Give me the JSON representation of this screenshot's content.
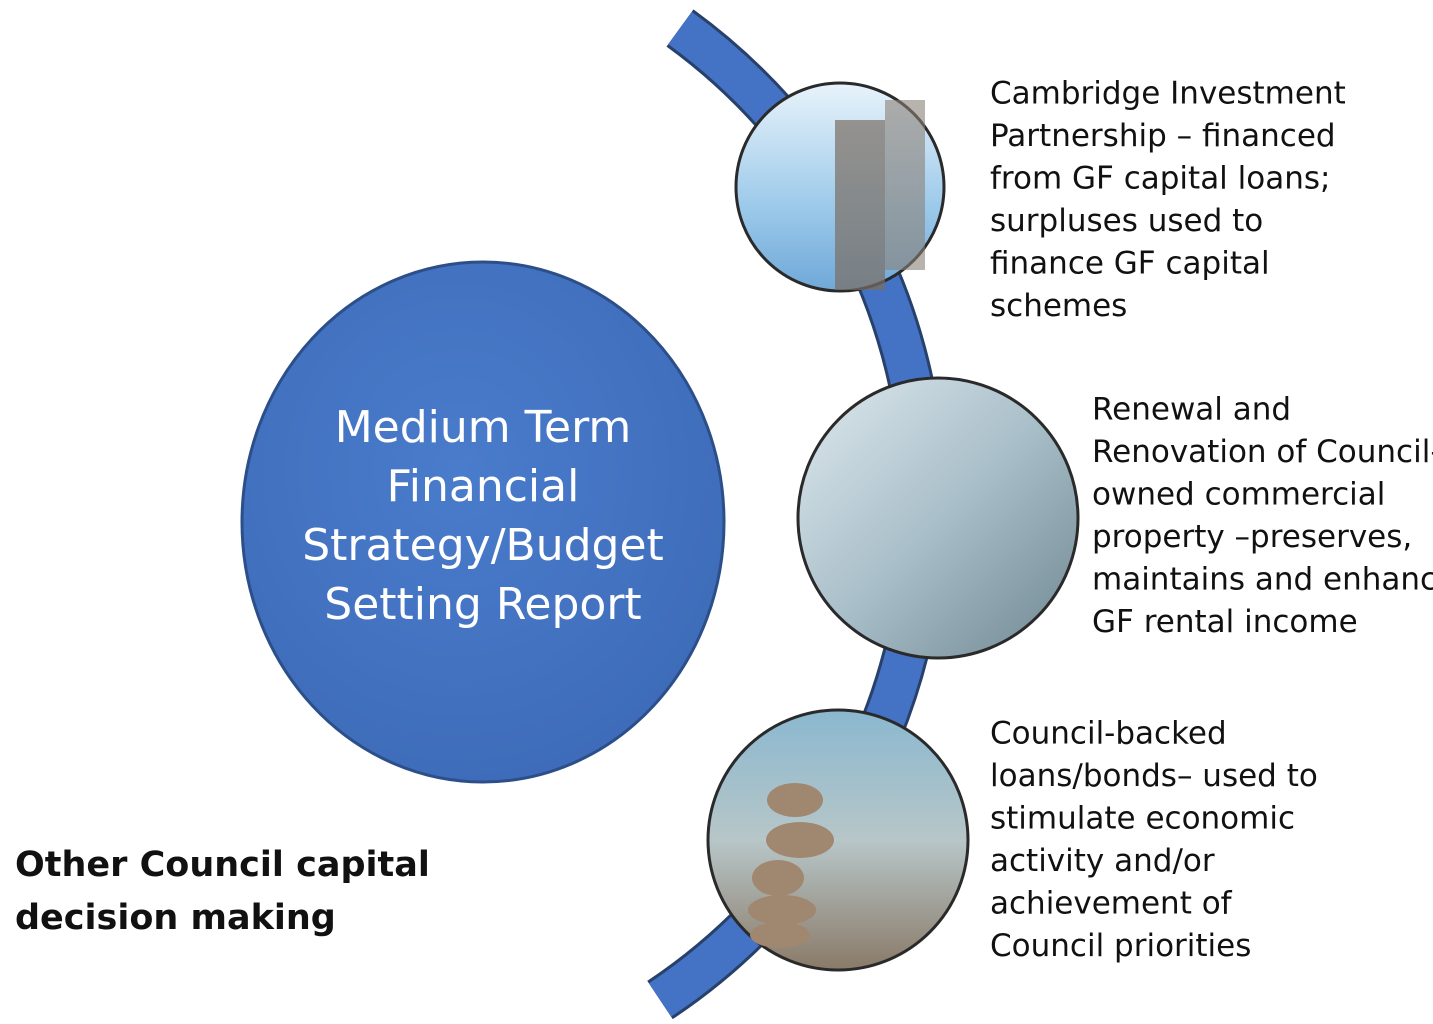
{
  "center": {
    "lines": [
      "Medium Term",
      "Financial",
      "Strategy/Budget",
      "Setting Report"
    ]
  },
  "items": [
    {
      "lines": [
        "Cambridge Investment",
        "Partnership – financed",
        "from GF capital loans;",
        "surpluses used to",
        "finance GF capital",
        "schemes"
      ]
    },
    {
      "lines": [
        "Renewal and",
        "Renovation of Council-",
        "owned commercial",
        "property –preserves,",
        "maintains and enhance",
        "GF rental income"
      ]
    },
    {
      "lines": [
        "Council-backed",
        "loans/bonds– used to",
        "stimulate economic",
        "activity and/or",
        "achievement of",
        "Council priorities"
      ]
    }
  ],
  "footer": {
    "lines": [
      "Other Council capital",
      "decision making"
    ]
  }
}
